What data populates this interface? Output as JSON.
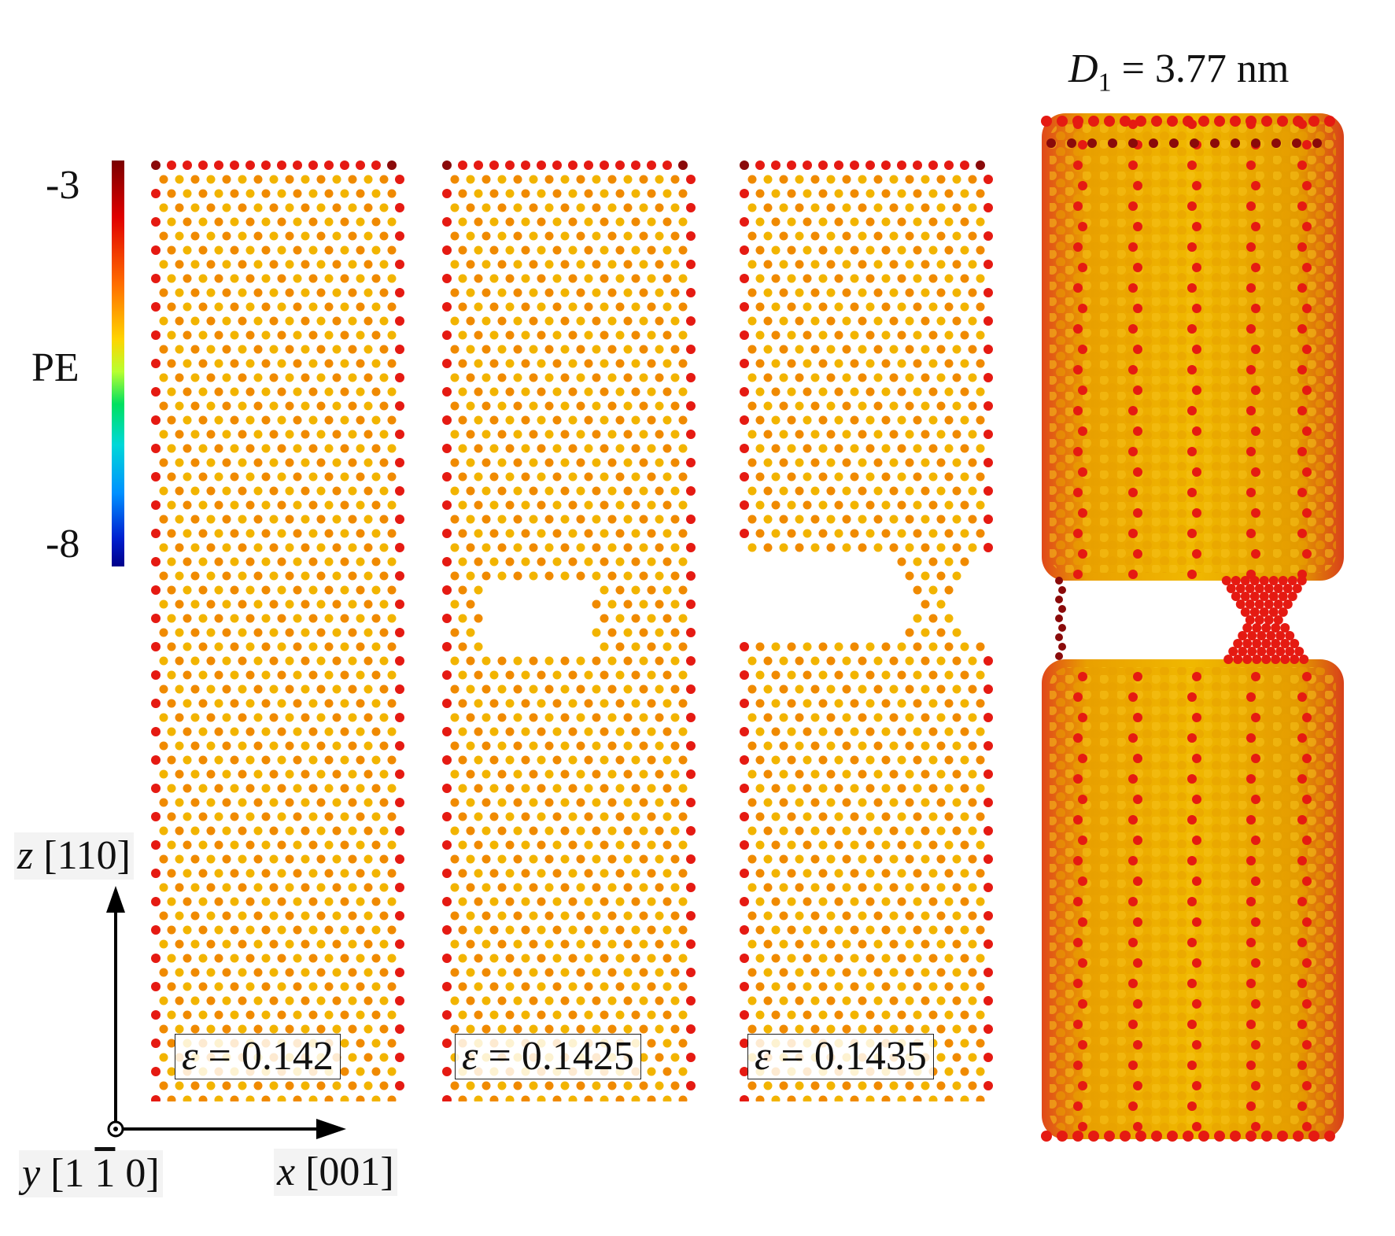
{
  "colorbar": {
    "label": "PE",
    "max_label": "-3",
    "min_label": "-8",
    "colors": [
      "#7a0000",
      "#e00000",
      "#ff6a00",
      "#ffd400",
      "#b8ff30",
      "#00e060",
      "#00d8d8",
      "#0090ff",
      "#0020d0",
      "#00008a"
    ]
  },
  "diameter_label": {
    "symbol": "D",
    "subscript": "1",
    "value": " = 3.77 nm"
  },
  "panels": [
    {
      "id": "p1",
      "strain_symbol": "ε",
      "strain_value": " = 0.142",
      "neck": "none"
    },
    {
      "id": "p2",
      "strain_symbol": "ε",
      "strain_value": " = 0.1425",
      "neck": "void"
    },
    {
      "id": "p3",
      "strain_symbol": "ε",
      "strain_value": " = 0.1435",
      "neck": "bridge"
    }
  ],
  "axes": {
    "z_symbol": "z",
    "z_dir": " [110]",
    "x_symbol": "x",
    "x_dir": " [001]",
    "y_symbol": "y",
    "y_dir_open": " [1 ",
    "y_dir_bar": "1",
    "y_dir_close": " 0]"
  },
  "atom_colors": {
    "interior": "#f2b400",
    "interior_alt": "#f08a00",
    "surface": "#e51a12",
    "surface_dark": "#8a0a0a",
    "cylinder_body": "#e6a200"
  }
}
